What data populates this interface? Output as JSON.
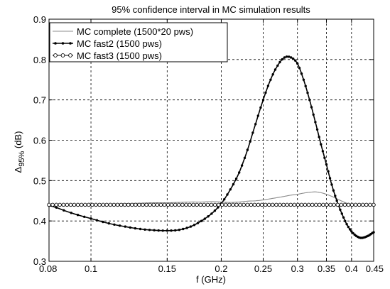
{
  "chart_data": {
    "type": "line",
    "title": "95% confidence interval in MC simulation results",
    "xlabel": "f (GHz)",
    "ylabel": {
      "prefix": "Δ",
      "subscript": "95%",
      "suffix": " (dB)"
    },
    "x_scale": "log",
    "xlim": [
      0.08,
      0.45
    ],
    "ylim": [
      0.3,
      0.9
    ],
    "x_ticks": [
      0.08,
      0.1,
      0.15,
      0.2,
      0.25,
      0.3,
      0.35,
      0.4,
      0.45
    ],
    "x_tick_labels": [
      "0.08",
      "0.1",
      "0.15",
      "0.2",
      "0.25",
      "0.3",
      "0.35",
      "0.4",
      "0.45"
    ],
    "y_ticks": [
      0.3,
      0.4,
      0.5,
      0.6,
      0.7,
      0.8,
      0.9
    ],
    "y_tick_labels": [
      "0.3",
      "0.4",
      "0.5",
      "0.6",
      "0.7",
      "0.8",
      "0.9"
    ],
    "grid": "dashed",
    "legend_position": "top-left",
    "series": [
      {
        "name": "MC complete (1500*20 pws)",
        "color": "#8c8c8c",
        "marker": "none",
        "x": [
          0.08,
          0.09,
          0.1,
          0.11,
          0.12,
          0.13,
          0.14,
          0.15,
          0.16,
          0.17,
          0.18,
          0.19,
          0.2,
          0.21,
          0.22,
          0.23,
          0.24,
          0.25,
          0.26,
          0.27,
          0.28,
          0.29,
          0.3,
          0.31,
          0.32,
          0.33,
          0.34,
          0.35,
          0.36,
          0.37,
          0.38,
          0.39,
          0.4,
          0.42,
          0.45
        ],
        "y": [
          0.44,
          0.441,
          0.441,
          0.442,
          0.443,
          0.444,
          0.445,
          0.445,
          0.446,
          0.447,
          0.447,
          0.448,
          0.447,
          0.446,
          0.447,
          0.449,
          0.45,
          0.452,
          0.455,
          0.458,
          0.461,
          0.464,
          0.466,
          0.469,
          0.471,
          0.472,
          0.47,
          0.466,
          0.461,
          0.455,
          0.449,
          0.444,
          0.441,
          0.44,
          0.44
        ]
      },
      {
        "name": "MC fast2 (1500 pws)",
        "color": "#000000",
        "marker": "dot",
        "x": [
          0.08,
          0.09,
          0.1,
          0.11,
          0.12,
          0.13,
          0.14,
          0.15,
          0.16,
          0.17,
          0.18,
          0.19,
          0.2,
          0.21,
          0.22,
          0.23,
          0.24,
          0.25,
          0.26,
          0.27,
          0.28,
          0.29,
          0.3,
          0.31,
          0.32,
          0.33,
          0.34,
          0.35,
          0.36,
          0.37,
          0.38,
          0.39,
          0.4,
          0.41,
          0.42,
          0.43,
          0.44,
          0.45
        ],
        "y": [
          0.438,
          0.42,
          0.406,
          0.394,
          0.386,
          0.38,
          0.377,
          0.376,
          0.378,
          0.386,
          0.4,
          0.418,
          0.443,
          0.478,
          0.52,
          0.576,
          0.64,
          0.7,
          0.75,
          0.785,
          0.805,
          0.805,
          0.79,
          0.75,
          0.7,
          0.645,
          0.59,
          0.54,
          0.49,
          0.45,
          0.418,
          0.392,
          0.374,
          0.363,
          0.358,
          0.36,
          0.365,
          0.372
        ]
      },
      {
        "name": "MC fast3 (1500 pws)",
        "color": "#000000",
        "marker": "circle",
        "x": [
          0.08,
          0.1,
          0.15,
          0.2,
          0.25,
          0.3,
          0.35,
          0.4,
          0.45
        ],
        "y": [
          0.44,
          0.44,
          0.44,
          0.44,
          0.44,
          0.44,
          0.44,
          0.44,
          0.44
        ]
      }
    ]
  }
}
